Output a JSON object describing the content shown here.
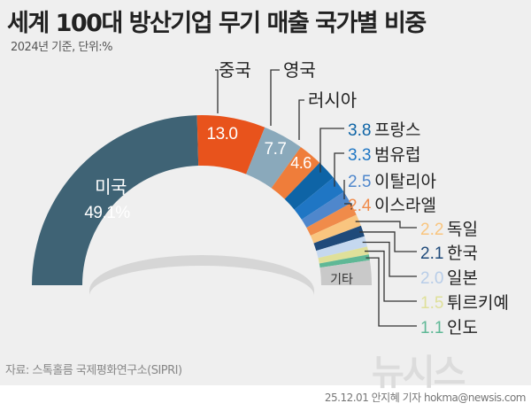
{
  "header": {
    "title": "세계 100대 방산기업 무기 매출 국가별 비중",
    "subtitle": "2024년 기준, 단위:%"
  },
  "footer": {
    "source": "자료: 스톡홀름 국제평화연구소(SIPRI)",
    "credit": "25.12.01 안지혜 기자 hokma@newsis.com",
    "watermark": "뉴시스"
  },
  "chart_data": {
    "type": "pie",
    "variant": "semi-donut",
    "unit": "%",
    "slices": [
      {
        "name": "미국",
        "value": 49.1,
        "label": "49.1%",
        "color": "#3f6375"
      },
      {
        "name": "중국",
        "value": 13.0,
        "label": "13.0",
        "color": "#e8531c"
      },
      {
        "name": "영국",
        "value": 7.7,
        "label": "7.7",
        "color": "#8aa9bb"
      },
      {
        "name": "러시아",
        "value": 4.6,
        "label": "4.6",
        "color": "#ef7d3a"
      },
      {
        "name": "프랑스",
        "value": 3.8,
        "label": "3.8",
        "color": "#0e64a6"
      },
      {
        "name": "범유럽",
        "value": 3.3,
        "label": "3.3",
        "color": "#1f76c4"
      },
      {
        "name": "이탈리아",
        "value": 2.5,
        "label": "2.5",
        "color": "#4f87cc"
      },
      {
        "name": "이스라엘",
        "value": 2.4,
        "label": "2.4",
        "color": "#f08b4a"
      },
      {
        "name": "독일",
        "value": 2.2,
        "label": "2.2",
        "color": "#f9c57f"
      },
      {
        "name": "한국",
        "value": 2.1,
        "label": "2.1",
        "color": "#1f4a7a"
      },
      {
        "name": "일본",
        "value": 2.0,
        "label": "2.0",
        "color": "#c5d8ef"
      },
      {
        "name": "튀르키예",
        "value": 1.5,
        "label": "1.5",
        "color": "#dfe09a"
      },
      {
        "name": "인도",
        "value": 1.1,
        "label": "1.1",
        "color": "#5fb896"
      },
      {
        "name": "기타",
        "value": 4.7,
        "label": "",
        "color": "#c9c9c9"
      }
    ]
  }
}
